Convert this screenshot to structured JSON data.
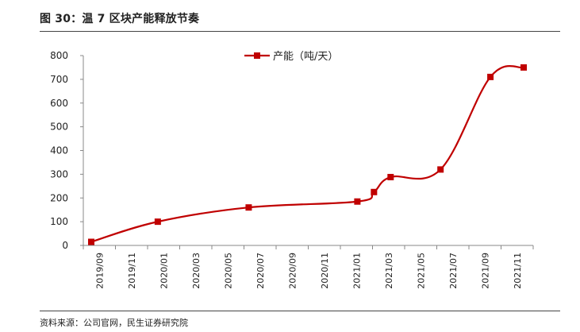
{
  "figure": {
    "title": "图 30：温 7 区块产能释放节奏",
    "source": "资料来源：公司官网，民生证券研究院"
  },
  "chart_data": {
    "type": "line",
    "xlabel": "",
    "ylabel": "",
    "ylim": [
      0,
      800
    ],
    "yticks": [
      0,
      100,
      200,
      300,
      400,
      500,
      600,
      700,
      800
    ],
    "xlim": [
      "2019-09",
      "2021-11"
    ],
    "xtick_labels": [
      "2019/09",
      "2019/11",
      "2020/01",
      "2020/03",
      "2020/05",
      "2020/07",
      "2020/09",
      "2020/11",
      "2021/01",
      "2021/03",
      "2021/05",
      "2021/07",
      "2021/09",
      "2021/11"
    ],
    "grid": false,
    "legend_position": "top-center",
    "series": [
      {
        "name": "产能（吨/天）",
        "color": "#C00000",
        "marker": "square",
        "smooth": true,
        "points": [
          {
            "x": "2019-09",
            "y": 15
          },
          {
            "x": "2020-01",
            "y": 100
          },
          {
            "x": "2020-06-15",
            "y": 160
          },
          {
            "x": "2021-01",
            "y": 185
          },
          {
            "x": "2021-02",
            "y": 225
          },
          {
            "x": "2021-03",
            "y": 288
          },
          {
            "x": "2021-06",
            "y": 320
          },
          {
            "x": "2021-09",
            "y": 710
          },
          {
            "x": "2021-11",
            "y": 750
          }
        ]
      }
    ]
  }
}
